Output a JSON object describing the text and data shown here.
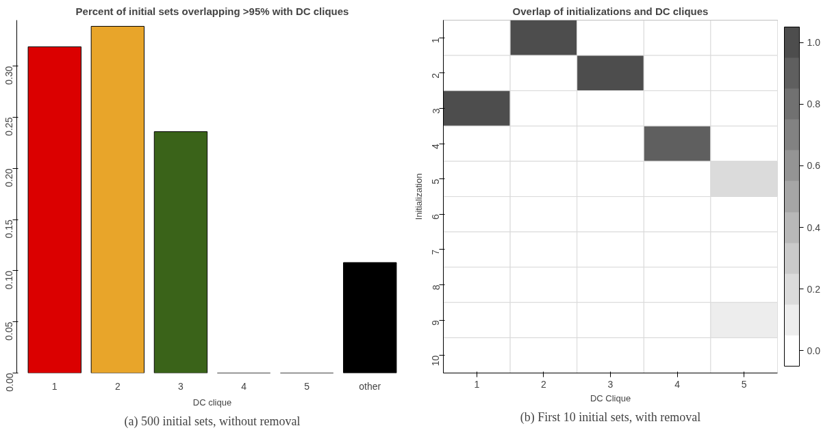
{
  "chart_data": [
    {
      "type": "bar",
      "title": "Percent of initial sets overlapping >95% with DC cliques",
      "xlabel": "DC clique",
      "categories": [
        "1",
        "2",
        "3",
        "4",
        "5",
        "other"
      ],
      "values": [
        0.319,
        0.339,
        0.236,
        0,
        0,
        0.108
      ],
      "colors": [
        "#db0000",
        "#e8a52a",
        "#3a6319",
        "#000000",
        "#000000",
        "#000000"
      ],
      "ylim": [
        0,
        0.345
      ],
      "yticks": [
        {
          "value": 0,
          "label": "0.00"
        },
        {
          "value": 0.05,
          "label": "0.05"
        },
        {
          "value": 0.1,
          "label": "0.10"
        },
        {
          "value": 0.15,
          "label": "0.15"
        },
        {
          "value": 0.2,
          "label": "0.20"
        },
        {
          "value": 0.25,
          "label": "0.25"
        },
        {
          "value": 0.3,
          "label": "0.30"
        }
      ],
      "grid": false,
      "annotations": [
        "(a) 500 initial sets, without removal"
      ]
    },
    {
      "type": "heatmap",
      "title": "Overlap of initializations and DC cliques",
      "xlabel": "DC Clique",
      "ylabel": "Initialization",
      "categories": [
        "1",
        "2",
        "3",
        "4",
        "5"
      ],
      "y_categories": [
        "1",
        "2",
        "3",
        "4",
        "5",
        "6",
        "7",
        "8",
        "9",
        "10"
      ],
      "cells": [
        [
          0,
          1,
          0,
          0,
          0
        ],
        [
          0,
          0,
          1,
          0,
          0
        ],
        [
          1,
          0,
          0,
          0,
          0
        ],
        [
          0,
          0,
          0,
          0.9,
          0
        ],
        [
          0,
          0,
          0,
          0,
          0.2
        ],
        [
          0,
          0,
          0,
          0,
          0
        ],
        [
          0,
          0,
          0,
          0,
          0
        ],
        [
          0,
          0,
          0,
          0,
          0
        ],
        [
          0,
          0,
          0,
          0,
          0.1
        ],
        [
          0,
          0,
          0,
          0,
          0
        ]
      ],
      "clim": [
        -0.05,
        1.05
      ],
      "cticks": [
        {
          "value": 0,
          "label": "0.0"
        },
        {
          "value": 0.2,
          "label": "0.2"
        },
        {
          "value": 0.4,
          "label": "0.4"
        },
        {
          "value": 0.6,
          "label": "0.6"
        },
        {
          "value": 0.8,
          "label": "0.8"
        },
        {
          "value": 1,
          "label": "1.0"
        }
      ],
      "annotations": [
        "(b) First 10 initial sets, with removal"
      ]
    }
  ]
}
